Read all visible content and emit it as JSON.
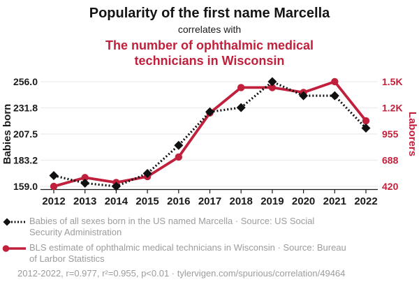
{
  "header": {
    "title": "Popularity of the first name Marcella",
    "subtitle": "correlates with",
    "secondary_title": "The number of ophthalmic medical\ntechnicians in Wisconsin"
  },
  "chart_data": {
    "type": "line",
    "x": [
      2012,
      2013,
      2014,
      2015,
      2016,
      2017,
      2018,
      2019,
      2020,
      2021,
      2022
    ],
    "x_tick_labels": [
      "2012",
      "2013",
      "2014",
      "2015",
      "2016",
      "2017",
      "2018",
      "2019",
      "2020",
      "2021",
      "2022"
    ],
    "left_axis": {
      "label": "Babies born",
      "min": 159,
      "max": 256,
      "tick_labels": [
        "256.0",
        "231.8",
        "207.5",
        "183.2",
        "159.0"
      ],
      "tick_values": [
        256.0,
        231.8,
        207.5,
        183.2,
        159.0
      ]
    },
    "right_axis": {
      "label": "Laborers",
      "min": 420,
      "max": 1490,
      "tick_labels": [
        "1.5K",
        "1.2K",
        "955",
        "688",
        "420"
      ],
      "tick_values": [
        1490,
        1222,
        955,
        688,
        420
      ]
    },
    "series": [
      {
        "name": "Babies of all sexes born in the US named Marcella",
        "axis": "left",
        "color": "#111111",
        "line_style": "dashed",
        "marker": "diamond",
        "values": [
          169,
          162,
          159,
          171,
          197,
          228,
          232,
          256,
          243,
          243,
          213
        ]
      },
      {
        "name": "BLS estimate of ophthalmic medical technicians in Wisconsin",
        "axis": "right",
        "color": "#c0203c",
        "line_style": "solid",
        "marker": "circle",
        "values": [
          420,
          510,
          460,
          520,
          720,
          1170,
          1430,
          1430,
          1380,
          1490,
          1090
        ]
      }
    ],
    "grid": true,
    "legend_position": "bottom"
  },
  "legend": {
    "items": [
      {
        "label": "Babies of all sexes born in the US named Marcella · Source: US Social\nSecurity Administration",
        "marker": "diamond-dashed"
      },
      {
        "label": "BLS estimate of ophthalmic medical technicians in Wisconsin · Source: Bureau\nof Larbor Statistics",
        "marker": "circle-solid"
      }
    ]
  },
  "footer": {
    "text": "2012-2022, r=0.977, r²=0.955, p<0.01 · tylervigen.com/spurious/correlation/49464"
  },
  "colors": {
    "accent_red": "#c0203c",
    "text_gray": "#9c9c9c",
    "gridline": "#ececec",
    "axis_black": "#1a1a1a"
  }
}
